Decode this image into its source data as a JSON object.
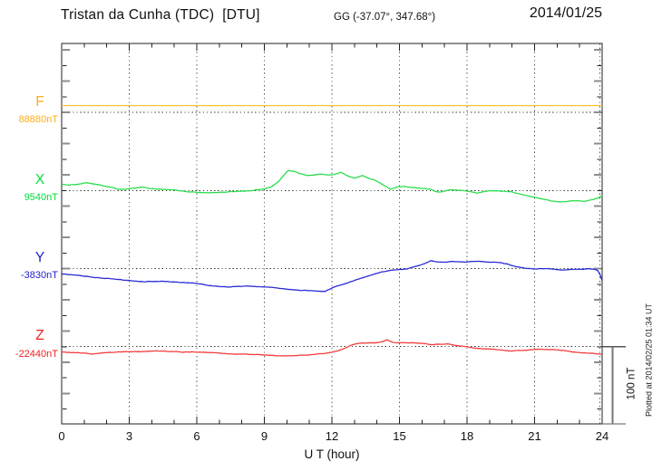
{
  "header": {
    "title": "Tristan da Cunha (TDC)  [DTU]",
    "coords": "GG (-37.07°, 347.68°)",
    "date": "2014/01/25"
  },
  "notes": {
    "plotted_at": "Plotted at 2014/02/25 01:34 UT"
  },
  "chart_data": {
    "type": "line",
    "title": "Tristan da Cunha (TDC) [DTU] magnetogram 2014/01/25",
    "xlabel": "U T (hour)",
    "x_range": [
      0,
      24
    ],
    "x_ticks": [
      0,
      3,
      6,
      9,
      12,
      15,
      18,
      21,
      24
    ],
    "x_minor_tick_hours": 1,
    "y_minor_tick_nT": 20,
    "baseline_spacing_nT": 100,
    "grid": true,
    "scale_bar": {
      "label": "100 nT",
      "nT": 100
    },
    "series": [
      {
        "name": "F",
        "base_label": "88880nT",
        "base_nT": 88880,
        "label_color": "#FFAE1A",
        "line_color": "#FFC32E",
        "points_hour_offset_nT": [
          [
            0,
            8.6
          ],
          [
            24,
            8.6
          ]
        ]
      },
      {
        "name": "X",
        "base_label": "9540nT",
        "base_nT": 9540,
        "label_color": "#00DC3C",
        "line_color": "#2ADD4E",
        "points_hour_offset_nT": [
          [
            0,
            8
          ],
          [
            0.3,
            6.6
          ],
          [
            0.7,
            7.7
          ],
          [
            1.1,
            10
          ],
          [
            1.4,
            8.4
          ],
          [
            1.8,
            6
          ],
          [
            2.2,
            4.2
          ],
          [
            2.5,
            1.3
          ],
          [
            2.9,
            1.9
          ],
          [
            3.3,
            2.9
          ],
          [
            3.6,
            4.5
          ],
          [
            4,
            2.2
          ],
          [
            4.5,
            1.7
          ],
          [
            5,
            0.6
          ],
          [
            5.5,
            -1.2
          ],
          [
            6,
            -2.4
          ],
          [
            6.5,
            -3.1
          ],
          [
            7,
            -2.4
          ],
          [
            7.5,
            -1.7
          ],
          [
            8,
            -1
          ],
          [
            8.5,
            0.2
          ],
          [
            9,
            2
          ],
          [
            9.3,
            4.5
          ],
          [
            9.6,
            10.5
          ],
          [
            9.85,
            19
          ],
          [
            10.05,
            25.4
          ],
          [
            10.3,
            24.7
          ],
          [
            10.6,
            21.3
          ],
          [
            10.9,
            19.2
          ],
          [
            11.2,
            19.8
          ],
          [
            11.5,
            20.9
          ],
          [
            11.8,
            20.3
          ],
          [
            12.1,
            20.6
          ],
          [
            12.4,
            23.3
          ],
          [
            12.7,
            18.6
          ],
          [
            13,
            15.7
          ],
          [
            13.35,
            19.1
          ],
          [
            13.7,
            14.7
          ],
          [
            14,
            12.1
          ],
          [
            14.3,
            6.9
          ],
          [
            14.6,
            1.5
          ],
          [
            14.9,
            4.7
          ],
          [
            15.2,
            5
          ],
          [
            15.6,
            4
          ],
          [
            16,
            2.9
          ],
          [
            16.35,
            1.9
          ],
          [
            16.7,
            -2.2
          ],
          [
            17,
            -0.8
          ],
          [
            17.3,
            0.8
          ],
          [
            17.6,
            0.2
          ],
          [
            17.9,
            -0.1
          ],
          [
            18.2,
            -1.9
          ],
          [
            18.45,
            -3.3
          ],
          [
            18.7,
            -1.6
          ],
          [
            19,
            -0.2
          ],
          [
            19.3,
            -0.6
          ],
          [
            19.6,
            -1
          ],
          [
            20,
            -2.2
          ],
          [
            20.3,
            -3.8
          ],
          [
            20.6,
            -6
          ],
          [
            21,
            -8.7
          ],
          [
            21.4,
            -11.3
          ],
          [
            21.7,
            -13.2
          ],
          [
            22,
            -14
          ],
          [
            22.3,
            -14.5
          ],
          [
            22.6,
            -13.3
          ],
          [
            22.9,
            -13
          ],
          [
            23.2,
            -13.8
          ],
          [
            23.5,
            -12.3
          ],
          [
            23.8,
            -9.9
          ],
          [
            24,
            -6.8
          ]
        ]
      },
      {
        "name": "Y",
        "base_label": "-3830nT",
        "base_nT": -3830,
        "label_color": "#2222CC",
        "line_color": "#2B2BD5",
        "points_hour_offset_nT": [
          [
            0,
            -6.7
          ],
          [
            0.4,
            -7.7
          ],
          [
            0.8,
            -8.9
          ],
          [
            1.3,
            -10.7
          ],
          [
            1.8,
            -12.1
          ],
          [
            2.3,
            -13.5
          ],
          [
            2.9,
            -14.9
          ],
          [
            3.3,
            -16.3
          ],
          [
            3.7,
            -16.9
          ],
          [
            4.1,
            -16.2
          ],
          [
            4.5,
            -16
          ],
          [
            4.9,
            -16.9
          ],
          [
            5.3,
            -17.7
          ],
          [
            5.7,
            -18.3
          ],
          [
            6.1,
            -19.3
          ],
          [
            6.5,
            -21.3
          ],
          [
            7,
            -23
          ],
          [
            7.4,
            -23.6
          ],
          [
            7.8,
            -22.8
          ],
          [
            8.2,
            -22.4
          ],
          [
            8.6,
            -23.1
          ],
          [
            9,
            -23.4
          ],
          [
            9.4,
            -24.6
          ],
          [
            9.8,
            -25.7
          ],
          [
            10.2,
            -26.8
          ],
          [
            10.6,
            -27.6
          ],
          [
            11,
            -28.3
          ],
          [
            11.4,
            -29.1
          ],
          [
            11.7,
            -29.3
          ],
          [
            12,
            -24.9
          ],
          [
            12.3,
            -22
          ],
          [
            12.6,
            -19.5
          ],
          [
            13,
            -15
          ],
          [
            13.4,
            -11.5
          ],
          [
            13.8,
            -8
          ],
          [
            14.2,
            -4.8
          ],
          [
            14.6,
            -2.2
          ],
          [
            15,
            -1.2
          ],
          [
            15.3,
            -0.6
          ],
          [
            15.6,
            1.6
          ],
          [
            15.9,
            4
          ],
          [
            16.15,
            6.5
          ],
          [
            16.4,
            10.3
          ],
          [
            16.7,
            8.9
          ],
          [
            17,
            8.2
          ],
          [
            17.3,
            9.4
          ],
          [
            17.6,
            8.8
          ],
          [
            17.9,
            8.4
          ],
          [
            18.2,
            9.1
          ],
          [
            18.5,
            9.4
          ],
          [
            18.8,
            8.5
          ],
          [
            19.1,
            8.1
          ],
          [
            19.5,
            7.5
          ],
          [
            19.8,
            5.6
          ],
          [
            20.1,
            3.2
          ],
          [
            20.4,
            1.4
          ],
          [
            20.7,
            0.1
          ],
          [
            21,
            -0.6
          ],
          [
            21.3,
            -0.2
          ],
          [
            21.6,
            0.2
          ],
          [
            21.9,
            -1.1
          ],
          [
            22.2,
            -2
          ],
          [
            22.5,
            -1.6
          ],
          [
            22.8,
            -1.2
          ],
          [
            23.1,
            -0.8
          ],
          [
            23.4,
            -0.3
          ],
          [
            23.65,
            -1
          ],
          [
            23.8,
            -2.2
          ],
          [
            23.9,
            -7
          ],
          [
            24,
            -15.5
          ]
        ]
      },
      {
        "name": "Z",
        "base_label": "-22440nT",
        "base_nT": -22440,
        "label_color": "#EE2222",
        "line_color": "#F23C3C",
        "points_hour_offset_nT": [
          [
            0,
            -7
          ],
          [
            0.5,
            -7.6
          ],
          [
            1,
            -8.2
          ],
          [
            1.4,
            -9.3
          ],
          [
            1.8,
            -8.3
          ],
          [
            2.4,
            -7
          ],
          [
            3,
            -6.6
          ],
          [
            3.7,
            -6.2
          ],
          [
            4.2,
            -5.6
          ],
          [
            4.6,
            -5.9
          ],
          [
            5.2,
            -6.9
          ],
          [
            5.8,
            -7
          ],
          [
            6.4,
            -7.1
          ],
          [
            7,
            -8.5
          ],
          [
            7.6,
            -9.4
          ],
          [
            8.2,
            -9.8
          ],
          [
            8.8,
            -10.5
          ],
          [
            9.4,
            -11.2
          ],
          [
            9.9,
            -11.7
          ],
          [
            10.4,
            -11.3
          ],
          [
            10.8,
            -10.8
          ],
          [
            11.2,
            -9.9
          ],
          [
            11.6,
            -9
          ],
          [
            12,
            -7.1
          ],
          [
            12.3,
            -5.2
          ],
          [
            12.6,
            -1.5
          ],
          [
            12.9,
            2.5
          ],
          [
            13.2,
            4.3
          ],
          [
            13.6,
            4.9
          ],
          [
            14,
            5.2
          ],
          [
            14.25,
            6.5
          ],
          [
            14.45,
            8.6
          ],
          [
            14.65,
            6
          ],
          [
            14.9,
            4.8
          ],
          [
            15.3,
            4.9
          ],
          [
            15.7,
            4.6
          ],
          [
            16.1,
            3.6
          ],
          [
            16.5,
            2.7
          ],
          [
            16.8,
            3.2
          ],
          [
            17.1,
            3.4
          ],
          [
            17.5,
            1.6
          ],
          [
            17.9,
            0.2
          ],
          [
            18.3,
            -1.4
          ],
          [
            18.7,
            -2.6
          ],
          [
            19.2,
            -3.6
          ],
          [
            19.6,
            -4.7
          ],
          [
            20,
            -5.6
          ],
          [
            20.4,
            -4.9
          ],
          [
            20.7,
            -4.3
          ],
          [
            21.1,
            -3.7
          ],
          [
            21.5,
            -3.6
          ],
          [
            21.9,
            -4.1
          ],
          [
            22.3,
            -5
          ],
          [
            22.7,
            -7
          ],
          [
            23.1,
            -7.7
          ],
          [
            23.5,
            -8.2
          ],
          [
            23.8,
            -9
          ],
          [
            24,
            -9.9
          ]
        ]
      }
    ]
  }
}
